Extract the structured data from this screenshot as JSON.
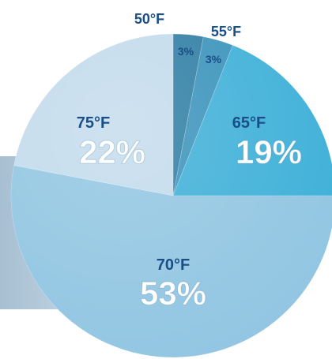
{
  "chart_data": {
    "type": "pie",
    "title": "",
    "slices": [
      {
        "label": "50°F",
        "value": 3,
        "value_label": "3%",
        "color": "#2f7ea4"
      },
      {
        "label": "55°F",
        "value": 3,
        "value_label": "3%",
        "color": "#3a93bb"
      },
      {
        "label": "65°F",
        "value": 19,
        "value_label": "19%",
        "color": "#3fb0d8"
      },
      {
        "label": "70°F",
        "value": 53,
        "value_label": "53%",
        "color": "#92c6e2"
      },
      {
        "label": "75°F",
        "value": 22,
        "value_label": "22%",
        "color": "#c3dbec"
      }
    ],
    "start_angle_deg": 0,
    "direction": "clockwise",
    "label_colors": {
      "name": "#1a4e86",
      "percent_on_light": "#1a4e86",
      "percent_on_dark": "#ffffff"
    }
  }
}
